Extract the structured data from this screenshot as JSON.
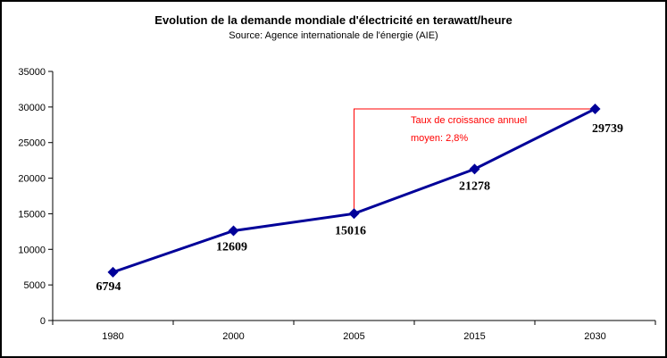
{
  "window": {
    "background_color": "#ffffff",
    "border_color": "#000000"
  },
  "chart_data": {
    "type": "line",
    "title": "Evolution de la demande mondiale d'électricité en terawatt/heure",
    "subtitle": "Source: Agence internationale de l'énergie (AIE)",
    "categories": [
      "1980",
      "2000",
      "2005",
      "2015",
      "2030"
    ],
    "series": [
      {
        "values": [
          6794,
          12609,
          15016,
          21278,
          29739
        ],
        "data_labels": [
          "6794",
          "12609",
          "15016",
          "21278",
          "29739"
        ],
        "color": "#000099",
        "marker": "diamond"
      }
    ],
    "xlabel": "",
    "ylabel": "",
    "ylim": [
      0,
      35000
    ],
    "ytick_step": 5000,
    "ytick_labels": [
      "0",
      "5000",
      "10000",
      "15000",
      "20000",
      "25000",
      "30000",
      "35000"
    ],
    "grid": false,
    "legend": "none",
    "axis_color": "#000000",
    "annotation": {
      "line1": "Taux de croissance annuel",
      "line2": "moyen: 2,8%",
      "color": "#ff0000",
      "bracket_color": "#ff0000",
      "bracket_from_index": 2,
      "bracket_to_index": 4
    }
  }
}
